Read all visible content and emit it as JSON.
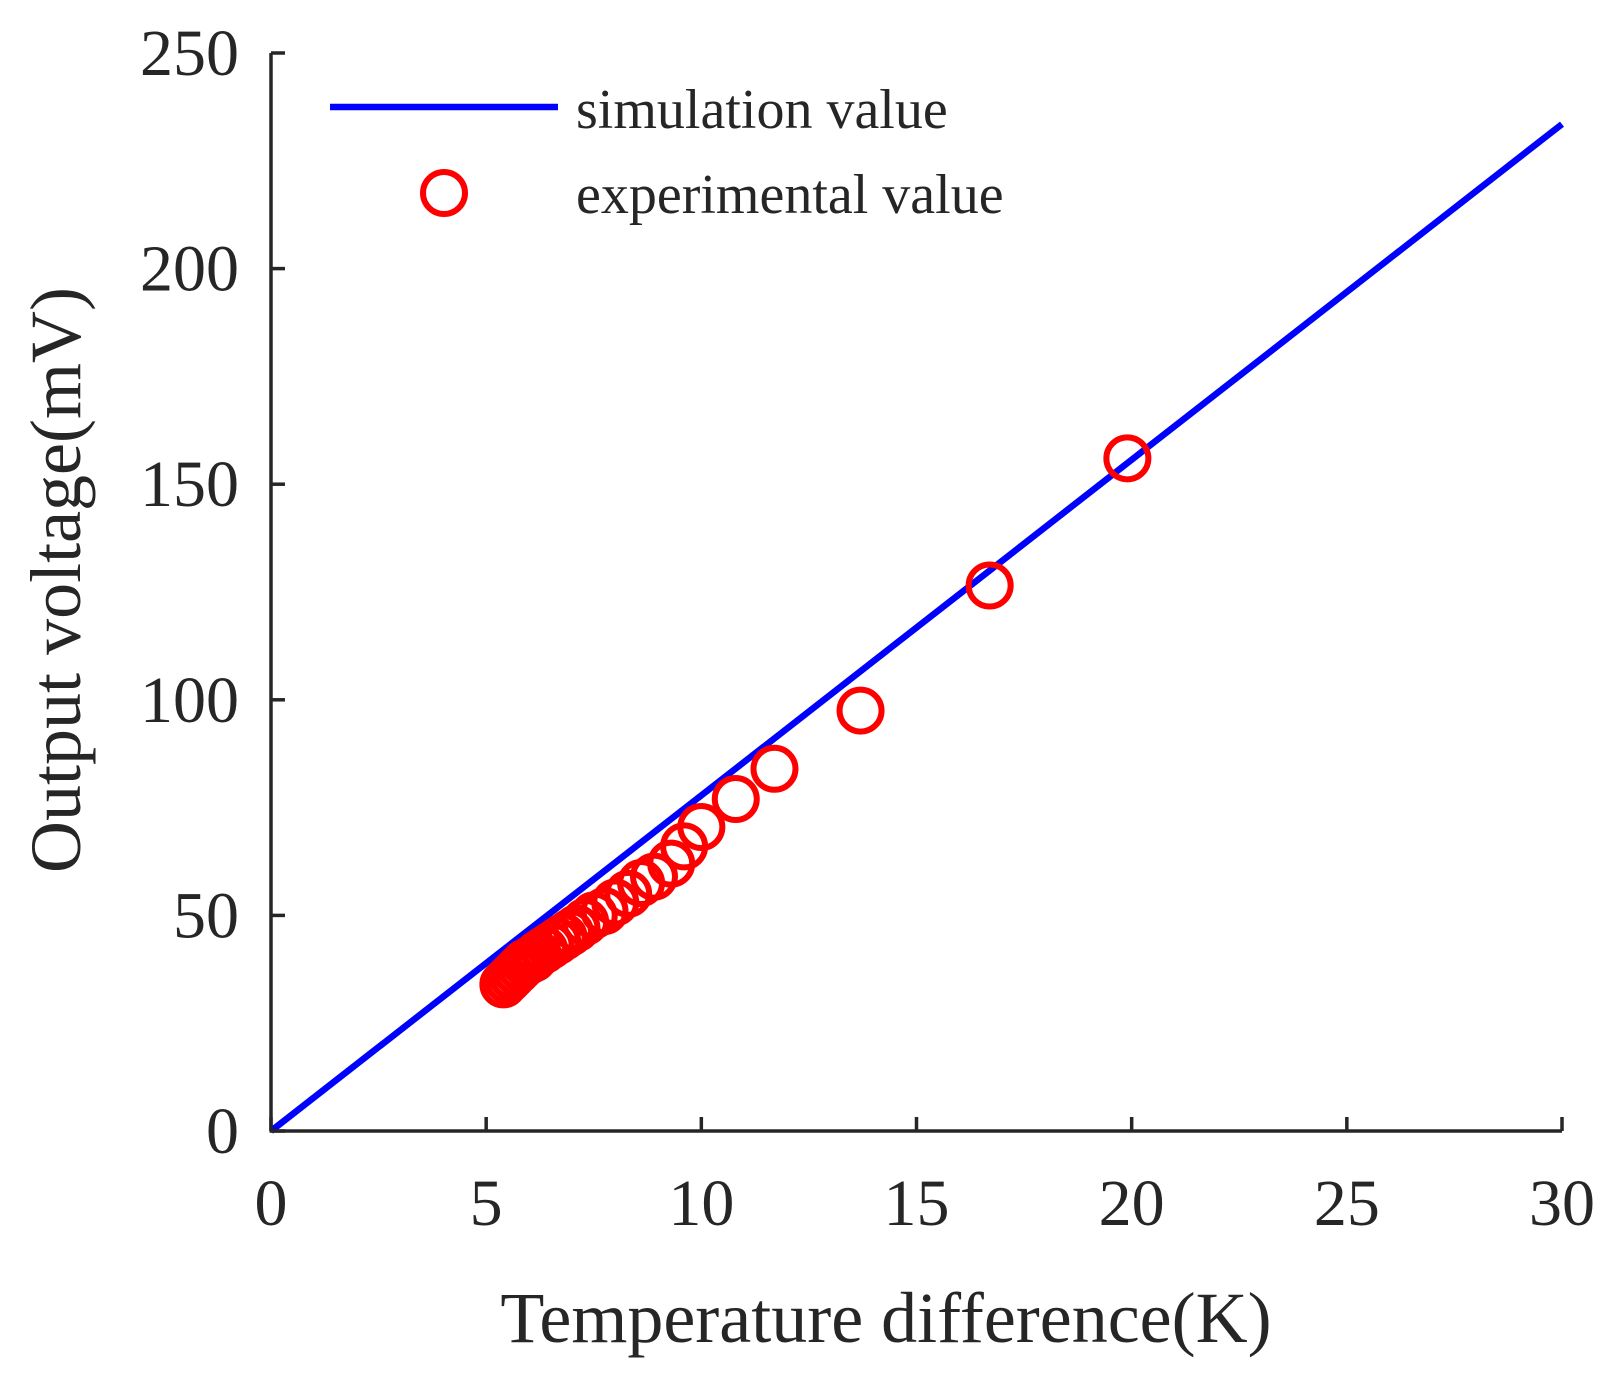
{
  "chart_data": {
    "type": "scatter",
    "title": "",
    "xlabel": "Temperature difference(K)",
    "ylabel": "Output voltage(mV)",
    "xlim": [
      0,
      30
    ],
    "ylim": [
      0,
      250
    ],
    "xticks": [
      0,
      5,
      10,
      15,
      20,
      25,
      30
    ],
    "yticks": [
      0,
      50,
      100,
      150,
      200,
      250
    ],
    "grid": false,
    "legend_position": "top-left",
    "series": [
      {
        "name": "simulation value",
        "kind": "line",
        "color": "#0000ff",
        "x": [
          0,
          30
        ],
        "y": [
          0,
          233.5
        ]
      },
      {
        "name": "experimental value",
        "kind": "scatter",
        "marker": "open-circle",
        "color": "#ff0000",
        "x": [
          5.4,
          5.5,
          5.6,
          5.7,
          5.8,
          5.9,
          6.0,
          6.1,
          6.2,
          6.35,
          6.5,
          6.65,
          6.8,
          6.95,
          7.1,
          7.3,
          7.5,
          7.75,
          8.0,
          8.3,
          8.6,
          8.9,
          9.3,
          9.6,
          10.0,
          10.8,
          11.7,
          13.7,
          16.7,
          19.9
        ],
        "y": [
          34,
          35,
          36,
          37,
          38,
          39,
          39.5,
          40,
          41,
          42,
          43,
          44,
          45,
          46,
          47,
          48.5,
          50,
          51,
          53,
          55,
          57.5,
          59,
          62,
          66,
          70.5,
          77,
          84,
          97.5,
          126.5,
          156
        ]
      }
    ]
  }
}
